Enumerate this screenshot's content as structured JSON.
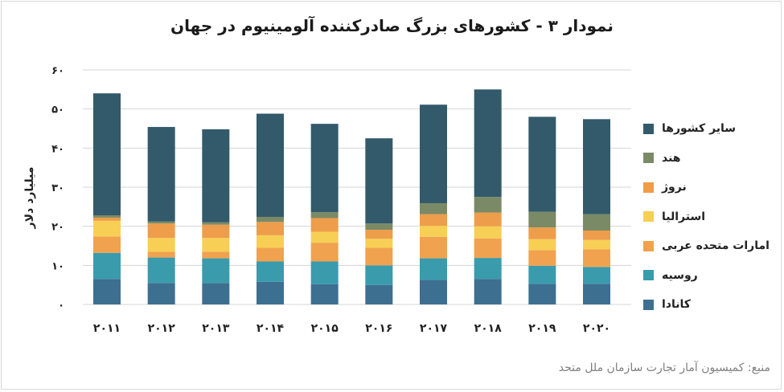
{
  "title": "نمودار ۳ - کشورهای بزرگ صادرکننده آلومینیوم در جهان",
  "source": "منبع: کمیسیون آمار تجارت سازمان ملل متحد",
  "chart_data": {
    "type": "bar",
    "stacked": true,
    "title": "نمودار ۳ - کشورهای بزرگ صادرکننده آلومینیوم در جهان",
    "ylabel": "میلیارد دلار",
    "xlabel": "",
    "ylim": [
      0,
      60
    ],
    "yticks": [
      0,
      10,
      20,
      30,
      40,
      50,
      60
    ],
    "ytick_labels": [
      "۰",
      "۱۰",
      "۲۰",
      "۳۰",
      "۴۰",
      "۵۰",
      "۶۰"
    ],
    "categories": [
      "۲۰۱۱",
      "۲۰۱۲",
      "۲۰۱۳",
      "۲۰۱۴",
      "۲۰۱۵",
      "۲۰۱۶",
      "۲۰۱۷",
      "۲۰۱۸",
      "۲۰۱۹",
      "۲۰۲۰"
    ],
    "grid": true,
    "legend_position": "right",
    "series": [
      {
        "name": "کانادا",
        "color": "#3d6f90",
        "values": [
          6.5,
          5.5,
          5.5,
          5.8,
          5.2,
          5.0,
          6.3,
          6.5,
          5.3,
          5.3
        ]
      },
      {
        "name": "روسیه",
        "color": "#3a9bad",
        "values": [
          6.7,
          6.5,
          6.3,
          5.2,
          5.8,
          5.0,
          5.5,
          5.4,
          4.6,
          4.3
        ]
      },
      {
        "name": "امارات متحده عربی",
        "color": "#f0a24e",
        "values": [
          4.2,
          1.5,
          1.7,
          3.5,
          4.8,
          4.5,
          5.5,
          5.0,
          4.0,
          4.5
        ]
      },
      {
        "name": "استرالیا",
        "color": "#f7cf54",
        "values": [
          4.0,
          3.5,
          3.5,
          3.2,
          2.8,
          2.3,
          2.8,
          3.1,
          2.8,
          2.4
        ]
      },
      {
        "name": "نروژ",
        "color": "#ee9d4a",
        "values": [
          0.8,
          3.7,
          3.4,
          3.4,
          3.5,
          2.3,
          3.0,
          3.5,
          3.0,
          2.4
        ]
      },
      {
        "name": "هند",
        "color": "#7b8a66",
        "values": [
          0.6,
          0.5,
          0.6,
          1.3,
          1.5,
          1.6,
          2.8,
          4.0,
          4.0,
          4.2
        ]
      },
      {
        "name": "سایر کشورها",
        "color": "#325a6a",
        "values": [
          31.2,
          24.2,
          23.8,
          26.4,
          22.6,
          21.8,
          25.2,
          27.5,
          24.3,
          24.3
        ]
      }
    ]
  }
}
